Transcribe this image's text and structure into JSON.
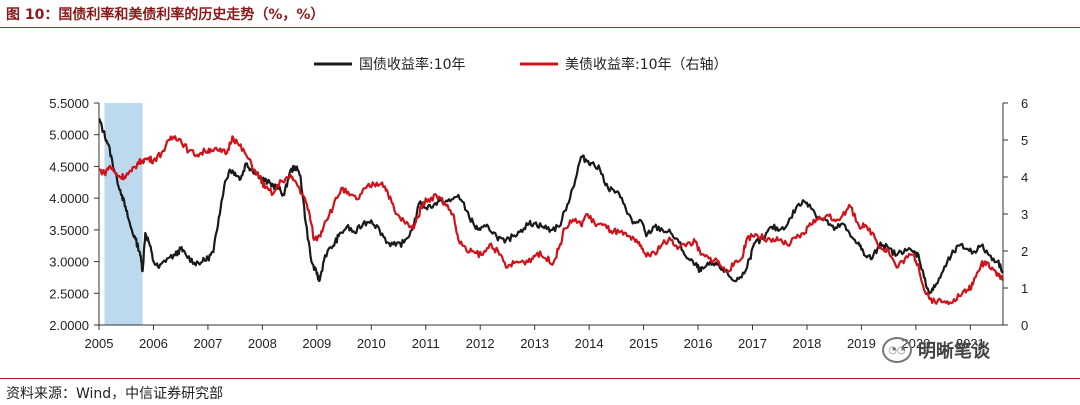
{
  "figure_title": "图 10：国债利率和美债利率的历史走势（%，%）",
  "source_note": "资料来源：Wind，中信证券研究部",
  "watermark_text": "明晰笔谈",
  "colors": {
    "china": "#1a1a1a",
    "us": "#d0121b",
    "shade": "#bcd9ee",
    "rule": "#a8262a"
  },
  "chart_data": {
    "type": "line",
    "title": "",
    "x_ticks": [
      "2005",
      "2006",
      "2007",
      "2008",
      "2009",
      "2010",
      "2011",
      "2012",
      "2013",
      "2014",
      "2015",
      "2016",
      "2017",
      "2018",
      "2019",
      "2020",
      "2021"
    ],
    "xlim": [
      2005.0,
      2021.6
    ],
    "y_left": {
      "ticks": [
        "2.0000",
        "2.5000",
        "3.0000",
        "3.5000",
        "4.0000",
        "4.5000",
        "5.0000",
        "5.5000"
      ],
      "range": [
        2.0,
        5.5
      ]
    },
    "y_right": {
      "ticks": [
        "0",
        "1",
        "2",
        "3",
        "4",
        "5",
        "6"
      ],
      "range": [
        0,
        6
      ]
    },
    "shaded_region": [
      2005.1,
      2005.8
    ],
    "series": [
      {
        "name": "国债收益率:10年",
        "axis": "left",
        "points": [
          [
            2005.0,
            5.25
          ],
          [
            2005.08,
            5.05
          ],
          [
            2005.17,
            4.85
          ],
          [
            2005.25,
            4.55
          ],
          [
            2005.33,
            4.3
          ],
          [
            2005.42,
            4.05
          ],
          [
            2005.5,
            3.8
          ],
          [
            2005.58,
            3.55
          ],
          [
            2005.67,
            3.35
          ],
          [
            2005.75,
            3.15
          ],
          [
            2005.8,
            2.85
          ],
          [
            2005.85,
            3.45
          ],
          [
            2005.92,
            3.3
          ],
          [
            2006.0,
            3.0
          ],
          [
            2006.1,
            2.9
          ],
          [
            2006.25,
            3.05
          ],
          [
            2006.4,
            3.1
          ],
          [
            2006.5,
            3.2
          ],
          [
            2006.6,
            3.1
          ],
          [
            2006.75,
            2.98
          ],
          [
            2006.9,
            3.0
          ],
          [
            2007.0,
            3.05
          ],
          [
            2007.1,
            3.15
          ],
          [
            2007.2,
            3.7
          ],
          [
            2007.3,
            4.2
          ],
          [
            2007.4,
            4.45
          ],
          [
            2007.5,
            4.4
          ],
          [
            2007.6,
            4.3
          ],
          [
            2007.7,
            4.55
          ],
          [
            2007.8,
            4.45
          ],
          [
            2007.9,
            4.4
          ],
          [
            2008.0,
            4.3
          ],
          [
            2008.1,
            4.25
          ],
          [
            2008.2,
            4.2
          ],
          [
            2008.3,
            4.15
          ],
          [
            2008.4,
            4.05
          ],
          [
            2008.5,
            4.4
          ],
          [
            2008.6,
            4.5
          ],
          [
            2008.7,
            4.35
          ],
          [
            2008.8,
            3.6
          ],
          [
            2008.9,
            3.0
          ],
          [
            2009.0,
            2.8
          ],
          [
            2009.05,
            2.7
          ],
          [
            2009.15,
            3.1
          ],
          [
            2009.3,
            3.25
          ],
          [
            2009.4,
            3.4
          ],
          [
            2009.55,
            3.55
          ],
          [
            2009.7,
            3.45
          ],
          [
            2009.85,
            3.6
          ],
          [
            2010.0,
            3.65
          ],
          [
            2010.15,
            3.5
          ],
          [
            2010.3,
            3.3
          ],
          [
            2010.45,
            3.25
          ],
          [
            2010.6,
            3.3
          ],
          [
            2010.75,
            3.5
          ],
          [
            2010.9,
            3.95
          ],
          [
            2011.0,
            3.85
          ],
          [
            2011.15,
            3.9
          ],
          [
            2011.3,
            3.95
          ],
          [
            2011.45,
            3.95
          ],
          [
            2011.6,
            4.05
          ],
          [
            2011.75,
            3.8
          ],
          [
            2011.9,
            3.55
          ],
          [
            2012.0,
            3.5
          ],
          [
            2012.15,
            3.55
          ],
          [
            2012.3,
            3.4
          ],
          [
            2012.45,
            3.3
          ],
          [
            2012.6,
            3.4
          ],
          [
            2012.75,
            3.5
          ],
          [
            2012.9,
            3.6
          ],
          [
            2013.0,
            3.6
          ],
          [
            2013.15,
            3.55
          ],
          [
            2013.3,
            3.5
          ],
          [
            2013.45,
            3.55
          ],
          [
            2013.6,
            3.9
          ],
          [
            2013.75,
            4.3
          ],
          [
            2013.85,
            4.65
          ],
          [
            2013.95,
            4.6
          ],
          [
            2014.05,
            4.55
          ],
          [
            2014.2,
            4.45
          ],
          [
            2014.35,
            4.15
          ],
          [
            2014.5,
            4.1
          ],
          [
            2014.65,
            3.9
          ],
          [
            2014.8,
            3.6
          ],
          [
            2014.95,
            3.65
          ],
          [
            2015.05,
            3.4
          ],
          [
            2015.2,
            3.55
          ],
          [
            2015.35,
            3.5
          ],
          [
            2015.5,
            3.45
          ],
          [
            2015.65,
            3.3
          ],
          [
            2015.8,
            3.05
          ],
          [
            2015.95,
            2.95
          ],
          [
            2016.05,
            2.85
          ],
          [
            2016.2,
            2.95
          ],
          [
            2016.35,
            2.95
          ],
          [
            2016.5,
            2.85
          ],
          [
            2016.65,
            2.7
          ],
          [
            2016.8,
            2.75
          ],
          [
            2016.95,
            3.05
          ],
          [
            2017.05,
            3.3
          ],
          [
            2017.2,
            3.35
          ],
          [
            2017.35,
            3.55
          ],
          [
            2017.5,
            3.5
          ],
          [
            2017.65,
            3.6
          ],
          [
            2017.8,
            3.85
          ],
          [
            2017.95,
            3.95
          ],
          [
            2018.05,
            3.9
          ],
          [
            2018.2,
            3.7
          ],
          [
            2018.35,
            3.65
          ],
          [
            2018.5,
            3.5
          ],
          [
            2018.65,
            3.6
          ],
          [
            2018.8,
            3.4
          ],
          [
            2018.95,
            3.3
          ],
          [
            2019.05,
            3.1
          ],
          [
            2019.2,
            3.05
          ],
          [
            2019.35,
            3.3
          ],
          [
            2019.5,
            3.2
          ],
          [
            2019.65,
            3.1
          ],
          [
            2019.8,
            3.2
          ],
          [
            2019.95,
            3.15
          ],
          [
            2020.05,
            3.1
          ],
          [
            2020.15,
            2.75
          ],
          [
            2020.25,
            2.5
          ],
          [
            2020.35,
            2.6
          ],
          [
            2020.5,
            2.85
          ],
          [
            2020.65,
            3.1
          ],
          [
            2020.8,
            3.25
          ],
          [
            2020.95,
            3.2
          ],
          [
            2021.05,
            3.15
          ],
          [
            2021.2,
            3.25
          ],
          [
            2021.35,
            3.1
          ],
          [
            2021.5,
            3.0
          ],
          [
            2021.6,
            2.85
          ]
        ]
      },
      {
        "name": "美债收益率:10年（右轴）",
        "axis": "right",
        "points": [
          [
            2005.0,
            4.2
          ],
          [
            2005.1,
            4.1
          ],
          [
            2005.2,
            4.3
          ],
          [
            2005.3,
            4.1
          ],
          [
            2005.4,
            4.0
          ],
          [
            2005.5,
            4.05
          ],
          [
            2005.6,
            4.15
          ],
          [
            2005.7,
            4.35
          ],
          [
            2005.8,
            4.45
          ],
          [
            2005.9,
            4.5
          ],
          [
            2006.0,
            4.45
          ],
          [
            2006.15,
            4.65
          ],
          [
            2006.3,
            5.0
          ],
          [
            2006.4,
            5.1
          ],
          [
            2006.5,
            5.0
          ],
          [
            2006.65,
            4.7
          ],
          [
            2006.8,
            4.6
          ],
          [
            2006.95,
            4.7
          ],
          [
            2007.05,
            4.75
          ],
          [
            2007.2,
            4.7
          ],
          [
            2007.35,
            4.65
          ],
          [
            2007.45,
            5.1
          ],
          [
            2007.55,
            4.9
          ],
          [
            2007.7,
            4.6
          ],
          [
            2007.85,
            4.2
          ],
          [
            2007.95,
            4.0
          ],
          [
            2008.05,
            3.7
          ],
          [
            2008.2,
            3.55
          ],
          [
            2008.35,
            3.9
          ],
          [
            2008.5,
            4.0
          ],
          [
            2008.6,
            3.9
          ],
          [
            2008.75,
            3.5
          ],
          [
            2008.85,
            3.1
          ],
          [
            2008.95,
            2.3
          ],
          [
            2009.05,
            2.4
          ],
          [
            2009.15,
            2.8
          ],
          [
            2009.3,
            3.2
          ],
          [
            2009.45,
            3.7
          ],
          [
            2009.6,
            3.5
          ],
          [
            2009.75,
            3.4
          ],
          [
            2009.9,
            3.7
          ],
          [
            2010.05,
            3.8
          ],
          [
            2010.2,
            3.85
          ],
          [
            2010.3,
            3.6
          ],
          [
            2010.45,
            3.0
          ],
          [
            2010.6,
            2.8
          ],
          [
            2010.75,
            2.6
          ],
          [
            2010.85,
            2.9
          ],
          [
            2010.95,
            3.3
          ],
          [
            2011.05,
            3.4
          ],
          [
            2011.2,
            3.5
          ],
          [
            2011.35,
            3.3
          ],
          [
            2011.5,
            3.0
          ],
          [
            2011.6,
            2.3
          ],
          [
            2011.75,
            2.0
          ],
          [
            2011.9,
            1.95
          ],
          [
            2012.05,
            1.9
          ],
          [
            2012.2,
            2.2
          ],
          [
            2012.35,
            1.9
          ],
          [
            2012.5,
            1.55
          ],
          [
            2012.65,
            1.7
          ],
          [
            2012.8,
            1.7
          ],
          [
            2012.95,
            1.8
          ],
          [
            2013.05,
            1.95
          ],
          [
            2013.2,
            1.8
          ],
          [
            2013.35,
            1.7
          ],
          [
            2013.45,
            2.1
          ],
          [
            2013.55,
            2.6
          ],
          [
            2013.7,
            2.85
          ],
          [
            2013.85,
            2.7
          ],
          [
            2013.95,
            3.0
          ],
          [
            2014.1,
            2.75
          ],
          [
            2014.25,
            2.7
          ],
          [
            2014.4,
            2.55
          ],
          [
            2014.55,
            2.5
          ],
          [
            2014.7,
            2.4
          ],
          [
            2014.85,
            2.25
          ],
          [
            2014.95,
            2.15
          ],
          [
            2015.05,
            1.85
          ],
          [
            2015.2,
            1.95
          ],
          [
            2015.35,
            2.2
          ],
          [
            2015.5,
            2.3
          ],
          [
            2015.65,
            2.1
          ],
          [
            2015.8,
            2.2
          ],
          [
            2015.95,
            2.25
          ],
          [
            2016.05,
            1.9
          ],
          [
            2016.2,
            1.8
          ],
          [
            2016.35,
            1.75
          ],
          [
            2016.5,
            1.45
          ],
          [
            2016.65,
            1.6
          ],
          [
            2016.8,
            1.8
          ],
          [
            2016.9,
            2.35
          ],
          [
            2017.05,
            2.45
          ],
          [
            2017.2,
            2.35
          ],
          [
            2017.35,
            2.25
          ],
          [
            2017.5,
            2.3
          ],
          [
            2017.65,
            2.15
          ],
          [
            2017.8,
            2.35
          ],
          [
            2017.95,
            2.45
          ],
          [
            2018.05,
            2.75
          ],
          [
            2018.2,
            2.85
          ],
          [
            2018.35,
            2.95
          ],
          [
            2018.5,
            2.85
          ],
          [
            2018.65,
            2.95
          ],
          [
            2018.8,
            3.2
          ],
          [
            2018.95,
            2.7
          ],
          [
            2019.05,
            2.65
          ],
          [
            2019.2,
            2.5
          ],
          [
            2019.35,
            2.1
          ],
          [
            2019.5,
            2.0
          ],
          [
            2019.65,
            1.55
          ],
          [
            2019.8,
            1.8
          ],
          [
            2019.95,
            1.9
          ],
          [
            2020.05,
            1.6
          ],
          [
            2020.15,
            0.95
          ],
          [
            2020.25,
            0.7
          ],
          [
            2020.4,
            0.65
          ],
          [
            2020.55,
            0.6
          ],
          [
            2020.7,
            0.7
          ],
          [
            2020.85,
            0.85
          ],
          [
            2020.95,
            0.95
          ],
          [
            2021.05,
            1.1
          ],
          [
            2021.2,
            1.65
          ],
          [
            2021.3,
            1.7
          ],
          [
            2021.4,
            1.55
          ],
          [
            2021.5,
            1.4
          ],
          [
            2021.6,
            1.2
          ]
        ]
      }
    ]
  }
}
